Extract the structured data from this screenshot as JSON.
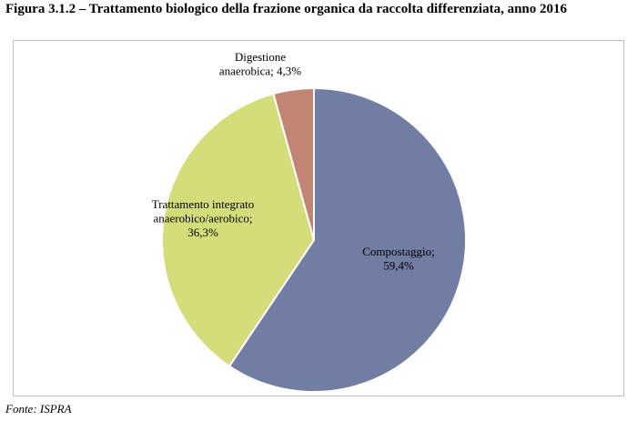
{
  "figure": {
    "title": "Figura 3.1.2 – Trattamento biologico della frazione organica da raccolta differenziata, anno 2016",
    "source": "Fonte: ISPRA"
  },
  "chart_data": {
    "type": "pie",
    "title": "",
    "slices": [
      {
        "name": "Compostaggio",
        "value": 59.4,
        "label_lines": [
          "Compostaggio;",
          "59,4%"
        ],
        "color": "#717da3"
      },
      {
        "name": "Trattamento integrato anaerobico/aerobico",
        "value": 36.3,
        "label_lines": [
          "Trattamento integrato",
          "anaerobico/aerobico;",
          "36,3%"
        ],
        "color": "#d5dd7b"
      },
      {
        "name": "Digestione anaerobica",
        "value": 4.3,
        "label_lines": [
          "Digestione",
          "anaerobica; 4,3%"
        ],
        "color": "#c28473"
      }
    ],
    "start": "12 o'clock",
    "direction": "clockwise",
    "legend": "none",
    "slice_border_color": "#ffffff"
  }
}
